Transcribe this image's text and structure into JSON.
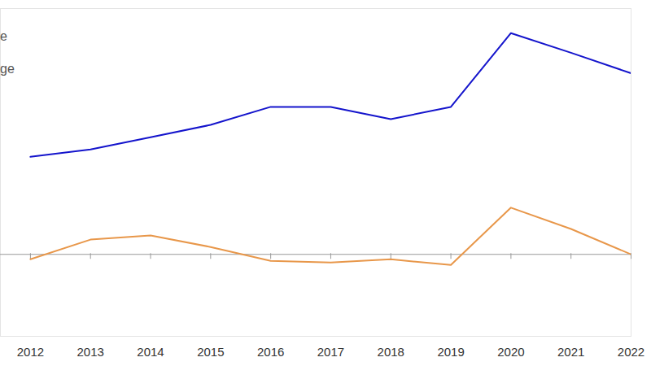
{
  "chart_data": {
    "type": "line",
    "x": [
      2012,
      2013,
      2014,
      2015,
      2016,
      2017,
      2018,
      2019,
      2020,
      2021,
      2022
    ],
    "series": [
      {
        "name": "e",
        "color": "#1414cc",
        "values": [
          11.9,
          12.8,
          14.3,
          15.8,
          18.0,
          18.0,
          16.5,
          18.0,
          27.0,
          24.6,
          22.1
        ]
      },
      {
        "name": "ge",
        "color": "#e8974a",
        "values": [
          -0.6,
          1.8,
          2.3,
          0.9,
          -0.8,
          -1.0,
          -0.6,
          -1.3,
          5.7,
          3.1,
          0.0
        ]
      }
    ],
    "xlim": [
      2011.5,
      2022
    ],
    "xticks": [
      2012,
      2013,
      2014,
      2015,
      2016,
      2017,
      2018,
      2019,
      2020,
      2021,
      2022
    ],
    "ylim": [
      -10,
      30
    ],
    "yticks": [
      0
    ],
    "grid": false,
    "tick_labels": "x",
    "legend": "top-left"
  }
}
